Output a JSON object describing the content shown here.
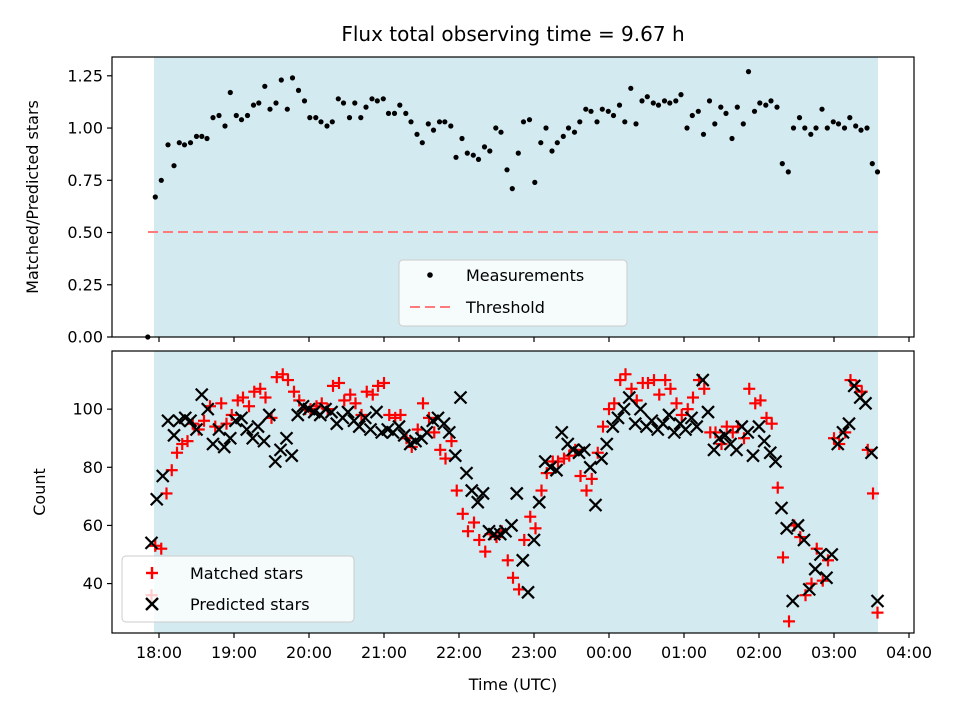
{
  "colors": {
    "shade": "#d3eaf0",
    "threshold": "#ff7b7b",
    "matched": "#ff0000",
    "predicted": "#000000",
    "measurement": "#000000"
  },
  "chart_data": [
    {
      "type": "scatter",
      "title": "Flux total observing time = 9.67 h",
      "xlabel": "",
      "ylabel": "Matched/Predicted stars",
      "xlim": [
        -0.55,
        10.1
      ],
      "ylim": [
        0.0,
        1.34
      ],
      "yticks": [
        0.0,
        0.25,
        0.5,
        0.75,
        1.0,
        1.25
      ],
      "yticklabels": [
        "0.00",
        "0.25",
        "0.50",
        "0.75",
        "1.00",
        "1.25"
      ],
      "shaded_range": [
        -0.08,
        9.59
      ],
      "threshold": {
        "name": "Threshold",
        "y": 0.5,
        "x": [
          -0.15,
          9.59
        ]
      },
      "legend": {
        "placement": "lower-center",
        "entries": [
          "Measurements",
          "Threshold"
        ]
      },
      "series": [
        {
          "name": "Measurements",
          "x": [
            -0.15,
            -0.05,
            0.03,
            0.12,
            0.2,
            0.27,
            0.34,
            0.42,
            0.5,
            0.57,
            0.64,
            0.72,
            0.8,
            0.88,
            0.95,
            1.03,
            1.1,
            1.18,
            1.26,
            1.33,
            1.41,
            1.48,
            1.56,
            1.63,
            1.71,
            1.78,
            1.86,
            1.94,
            2.01,
            2.09,
            2.16,
            2.24,
            2.31,
            2.39,
            2.46,
            2.54,
            2.61,
            2.69,
            2.76,
            2.84,
            2.91,
            2.99,
            3.06,
            3.14,
            3.21,
            3.29,
            3.36,
            3.44,
            3.51,
            3.59,
            3.66,
            3.74,
            3.81,
            3.89,
            3.96,
            4.04,
            4.11,
            4.19,
            4.26,
            4.34,
            4.41,
            4.49,
            4.56,
            4.64,
            4.71,
            4.79,
            4.86,
            4.94,
            5.01,
            5.09,
            5.16,
            5.24,
            5.31,
            5.39,
            5.46,
            5.54,
            5.61,
            5.69,
            5.76,
            5.84,
            5.91,
            5.99,
            6.06,
            6.14,
            6.21,
            6.29,
            6.36,
            6.44,
            6.51,
            6.59,
            6.66,
            6.74,
            6.81,
            6.89,
            6.96,
            7.04,
            7.11,
            7.19,
            7.26,
            7.34,
            7.41,
            7.49,
            7.56,
            7.64,
            7.71,
            7.79,
            7.86,
            7.94,
            8.01,
            8.09,
            8.16,
            8.24,
            8.31,
            8.39,
            8.46,
            8.54,
            8.61,
            8.69,
            8.76,
            8.84,
            8.91,
            8.99,
            9.06,
            9.14,
            9.21,
            9.29,
            9.36,
            9.44,
            9.51,
            9.58
          ],
          "values": [
            0.0,
            0.67,
            0.75,
            0.92,
            0.82,
            0.93,
            0.92,
            0.93,
            0.96,
            0.96,
            0.95,
            1.05,
            1.06,
            1.01,
            1.17,
            1.06,
            1.04,
            1.06,
            1.11,
            1.12,
            1.2,
            1.09,
            1.12,
            1.23,
            1.09,
            1.24,
            1.18,
            1.13,
            1.05,
            1.05,
            1.03,
            1.01,
            1.03,
            1.14,
            1.12,
            1.05,
            1.12,
            1.05,
            1.1,
            1.14,
            1.13,
            1.14,
            1.07,
            1.07,
            1.11,
            1.07,
            1.03,
            0.97,
            0.93,
            1.02,
            0.99,
            1.03,
            1.03,
            1.01,
            0.86,
            0.95,
            0.88,
            0.87,
            0.85,
            0.91,
            0.89,
            1.0,
            0.98,
            0.8,
            0.71,
            0.88,
            1.03,
            1.04,
            0.74,
            0.93,
            1.0,
            0.89,
            0.93,
            0.96,
            1.0,
            0.98,
            1.03,
            1.09,
            1.08,
            1.03,
            1.09,
            1.08,
            1.06,
            1.11,
            1.03,
            1.19,
            1.02,
            1.13,
            1.15,
            1.12,
            1.11,
            1.13,
            1.12,
            1.13,
            1.16,
            1.0,
            1.06,
            1.08,
            0.97,
            1.13,
            1.02,
            1.1,
            1.07,
            0.95,
            1.1,
            1.02,
            1.27,
            1.08,
            1.12,
            1.11,
            1.13,
            1.1,
            0.83,
            0.79,
            1.0,
            1.05,
            1.0,
            0.97,
            1.0,
            1.09,
            1.0,
            1.03,
            1.02,
            1.0,
            1.05,
            1.01,
            0.99,
            1.0,
            0.83,
            0.79
          ]
        }
      ]
    },
    {
      "type": "scatter",
      "title": "",
      "xlabel": "Time (UTC)",
      "ylabel": "Count",
      "xlim": [
        -0.55,
        10.1
      ],
      "ylim": [
        23,
        120
      ],
      "yticks": [
        40,
        60,
        80,
        100
      ],
      "yticklabels": [
        "40",
        "60",
        "80",
        "100"
      ],
      "xticks": [
        0,
        1,
        2,
        3,
        4,
        5,
        6,
        7,
        8,
        9,
        10
      ],
      "xticklabels": [
        "18:00",
        "19:00",
        "20:00",
        "21:00",
        "22:00",
        "23:00",
        "00:00",
        "01:00",
        "02:00",
        "03:00",
        "04:00"
      ],
      "shaded_range": [
        -0.08,
        9.59
      ],
      "legend": {
        "placement": "lower-left",
        "entries": [
          "Matched stars",
          "Predicted stars"
        ]
      },
      "series": [
        {
          "name": "Matched stars",
          "x": [
            -0.1,
            -0.05,
            0.03,
            0.1,
            0.17,
            0.24,
            0.31,
            0.38,
            0.45,
            0.53,
            0.6,
            0.68,
            0.75,
            0.83,
            0.9,
            0.97,
            1.05,
            1.12,
            1.2,
            1.27,
            1.35,
            1.42,
            1.5,
            1.57,
            1.65,
            1.72,
            1.8,
            1.87,
            1.95,
            2.02,
            2.1,
            2.17,
            2.25,
            2.32,
            2.4,
            2.47,
            2.55,
            2.62,
            2.7,
            2.77,
            2.85,
            2.92,
            3.0,
            3.07,
            3.15,
            3.22,
            3.3,
            3.37,
            3.45,
            3.52,
            3.6,
            3.67,
            3.75,
            3.82,
            3.9,
            3.97,
            4.05,
            4.12,
            4.2,
            4.27,
            4.35,
            4.42,
            4.5,
            4.57,
            4.65,
            4.72,
            4.8,
            4.87,
            4.95,
            5.02,
            5.1,
            5.17,
            5.25,
            5.32,
            5.4,
            5.47,
            5.55,
            5.62,
            5.7,
            5.77,
            5.85,
            5.92,
            6.0,
            6.07,
            6.15,
            6.22,
            6.3,
            6.37,
            6.45,
            6.52,
            6.6,
            6.67,
            6.75,
            6.82,
            6.9,
            6.97,
            7.05,
            7.12,
            7.2,
            7.27,
            7.35,
            7.42,
            7.5,
            7.57,
            7.65,
            7.72,
            7.8,
            7.87,
            7.95,
            8.02,
            8.1,
            8.17,
            8.25,
            8.32,
            8.4,
            8.47,
            8.55,
            8.62,
            8.7,
            8.77,
            8.85,
            8.92,
            9.0,
            9.07,
            9.15,
            9.22,
            9.3,
            9.37,
            9.45,
            9.52,
            9.58
          ],
          "values": [
            36,
            53,
            52,
            71,
            79,
            85,
            88,
            89,
            95,
            93,
            96,
            101,
            94,
            102,
            95,
            98,
            103,
            104,
            101,
            106,
            107,
            104,
            97,
            111,
            112,
            110,
            106,
            103,
            100,
            100,
            101,
            102,
            100,
            108,
            109,
            103,
            105,
            102,
            98,
            106,
            105,
            108,
            109,
            98,
            97,
            98,
            90,
            87,
            93,
            102,
            97,
            92,
            86,
            83,
            89,
            72,
            64,
            58,
            61,
            55,
            51,
            57,
            56,
            58,
            48,
            42,
            38,
            55,
            63,
            59,
            72,
            78,
            82,
            82,
            83,
            84,
            86,
            77,
            72,
            76,
            85,
            94,
            100,
            102,
            110,
            112,
            107,
            103,
            109,
            109,
            110,
            105,
            110,
            107,
            102,
            98,
            100,
            104,
            110,
            107,
            92,
            92,
            88,
            94,
            92,
            94,
            90,
            107,
            102,
            103,
            97,
            95,
            73,
            49,
            27,
            60,
            56,
            36,
            40,
            52,
            41,
            48,
            90,
            88,
            92,
            110,
            108,
            106,
            86,
            71,
            30
          ],
          "marker": "plus"
        },
        {
          "name": "Predicted stars",
          "x": [
            -0.1,
            -0.03,
            0.05,
            0.12,
            0.2,
            0.27,
            0.35,
            0.42,
            0.5,
            0.57,
            0.65,
            0.72,
            0.8,
            0.87,
            0.95,
            1.02,
            1.1,
            1.17,
            1.25,
            1.32,
            1.4,
            1.47,
            1.55,
            1.62,
            1.7,
            1.77,
            1.85,
            1.92,
            2.0,
            2.07,
            2.15,
            2.22,
            2.3,
            2.37,
            2.45,
            2.52,
            2.6,
            2.67,
            2.75,
            2.82,
            2.9,
            2.97,
            3.05,
            3.12,
            3.2,
            3.27,
            3.35,
            3.42,
            3.5,
            3.57,
            3.65,
            3.72,
            3.8,
            3.87,
            3.95,
            4.02,
            4.1,
            4.17,
            4.25,
            4.32,
            4.4,
            4.47,
            4.55,
            4.62,
            4.7,
            4.77,
            4.85,
            4.92,
            5.0,
            5.07,
            5.15,
            5.22,
            5.3,
            5.37,
            5.45,
            5.52,
            5.6,
            5.67,
            5.75,
            5.82,
            5.9,
            5.97,
            6.05,
            6.12,
            6.2,
            6.27,
            6.35,
            6.42,
            6.5,
            6.57,
            6.65,
            6.72,
            6.8,
            6.87,
            6.95,
            7.02,
            7.1,
            7.17,
            7.25,
            7.32,
            7.4,
            7.47,
            7.55,
            7.62,
            7.7,
            7.77,
            7.85,
            7.92,
            8.0,
            8.07,
            8.15,
            8.22,
            8.3,
            8.37,
            8.45,
            8.52,
            8.6,
            8.67,
            8.75,
            8.82,
            8.9,
            8.97,
            9.05,
            9.12,
            9.2,
            9.27,
            9.35,
            9.42,
            9.5,
            9.58
          ],
          "values": [
            54,
            69,
            77,
            96,
            91,
            96,
            97,
            96,
            93,
            105,
            100,
            88,
            93,
            87,
            90,
            96,
            97,
            93,
            90,
            94,
            89,
            98,
            82,
            86,
            90,
            84,
            98,
            101,
            100,
            99,
            98,
            100,
            99,
            95,
            97,
            99,
            96,
            94,
            97,
            93,
            99,
            92,
            93,
            92,
            94,
            91,
            88,
            89,
            90,
            92,
            96,
            97,
            95,
            92,
            84,
            104,
            78,
            72,
            68,
            71,
            58,
            57,
            57,
            58,
            60,
            71,
            48,
            37,
            55,
            68,
            82,
            80,
            79,
            92,
            88,
            86,
            85,
            86,
            80,
            67,
            83,
            88,
            94,
            97,
            100,
            104,
            95,
            100,
            94,
            96,
            93,
            95,
            98,
            92,
            95,
            93,
            97,
            94,
            110,
            99,
            86,
            90,
            91,
            88,
            86,
            94,
            92,
            84,
            94,
            89,
            85,
            82,
            66,
            59,
            34,
            60,
            55,
            38,
            45,
            50,
            42,
            50,
            88,
            92,
            95,
            108,
            104,
            102,
            85,
            34
          ],
          "marker": "x"
        }
      ]
    }
  ]
}
